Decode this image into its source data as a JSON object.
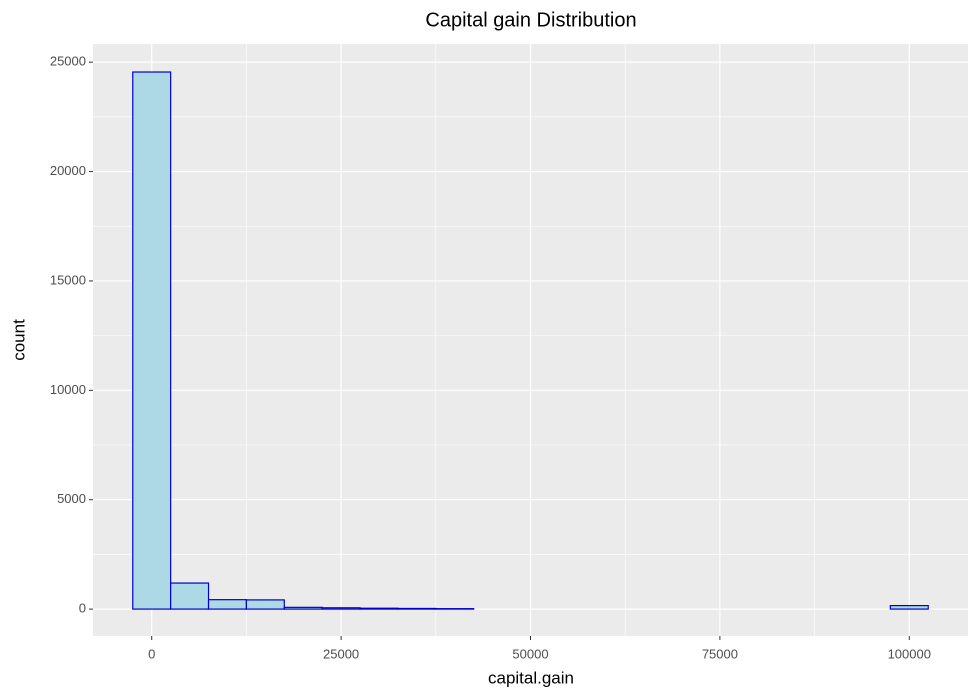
{
  "chart_data": {
    "type": "histogram",
    "title": "Capital gain Distribution",
    "x_label": "capital.gain",
    "y_label": "count",
    "bins": [
      -2500,
      2500,
      7500,
      12500,
      17500,
      22500,
      27500,
      32500,
      37500,
      42500,
      47500,
      52500,
      57500,
      62500,
      67500,
      72500,
      77500,
      82500,
      87500,
      92500,
      97500,
      102500
    ],
    "values": [
      24550,
      1190,
      430,
      420,
      80,
      60,
      40,
      30,
      20,
      0,
      0,
      0,
      0,
      0,
      0,
      0,
      0,
      0,
      0,
      0,
      160
    ],
    "color": "#add8e6",
    "edge_color": "#0000cd",
    "xlim": [
      -7750,
      107750
    ],
    "xticks": [
      0,
      25000,
      50000,
      75000,
      100000
    ],
    "ylim": [
      -1230,
      25830
    ],
    "yticks": [
      0,
      5000,
      10000,
      15000,
      20000,
      25000
    ],
    "grid": true
  }
}
